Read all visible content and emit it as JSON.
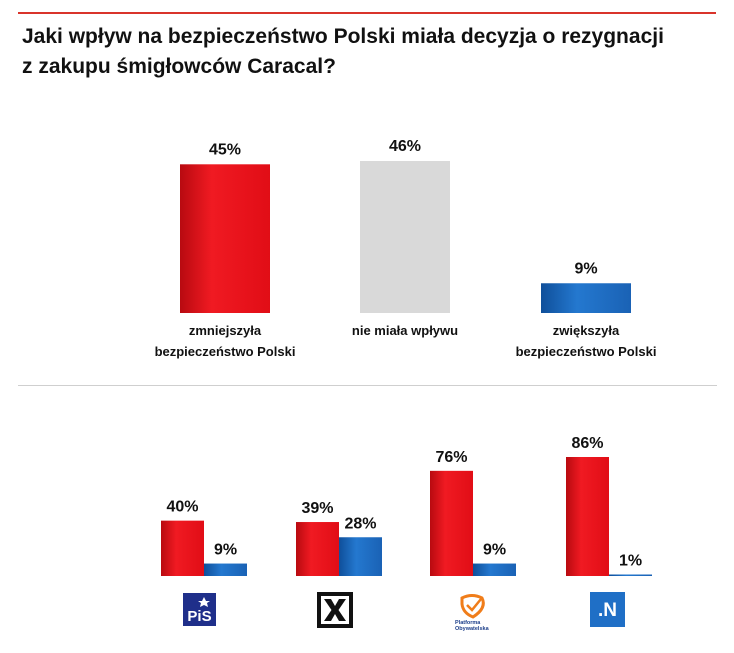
{
  "title_line1": "Jaki wpływ na bezpieczeństwo Polski miała decyzja o rezygnacji",
  "title_line2": "z zakupu śmigłowców Caracal?",
  "colors": {
    "red": "#e8101a",
    "grey": "#d9d9d9",
    "blue": "#1d67b8",
    "accent_line": "#d9342b"
  },
  "chart_data": [
    {
      "type": "bar",
      "title": "Jaki wpływ na bezpieczeństwo Polski miała decyzja o rezygnacji z zakupu śmigłowców Caracal?",
      "categories": [
        [
          "zmniejszyła",
          "bezpieczeństwo Polski"
        ],
        [
          "nie miała wpływu"
        ],
        [
          "zwiększyła",
          "bezpieczeństwo Polski"
        ]
      ],
      "values": [
        45,
        46,
        9
      ],
      "labels": [
        "45%",
        "46%",
        "9%"
      ],
      "colors": [
        "red",
        "grey",
        "blue"
      ],
      "unit": "%",
      "ylim": [
        0,
        50
      ]
    },
    {
      "type": "bar",
      "categories": [
        "PiS",
        "Kukiz'15",
        "Platforma Obywatelska",
        ".N"
      ],
      "series": [
        {
          "name": "zmniejszyła bezpieczeństwo Polski",
          "color": "red",
          "values": [
            40,
            39,
            76,
            86
          ],
          "labels": [
            "40%",
            "39%",
            "76%",
            "86%"
          ]
        },
        {
          "name": "zwiększyła bezpieczeństwo Polski",
          "color": "blue",
          "values": [
            9,
            28,
            9,
            1
          ],
          "labels": [
            "9%",
            "28%",
            "9%",
            "1%"
          ]
        }
      ],
      "logos": [
        {
          "name": "pis-logo",
          "text": "PiS"
        },
        {
          "name": "kukiz-logo",
          "text": ""
        },
        {
          "name": "po-logo",
          "text": "Platforma Obywatelska"
        },
        {
          "name": "nowoczesna-logo",
          "text": ".N"
        }
      ],
      "unit": "%",
      "ylim": [
        0,
        100
      ]
    }
  ]
}
